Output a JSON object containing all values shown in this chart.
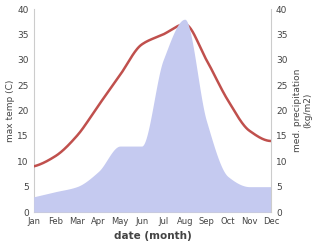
{
  "months": [
    "Jan",
    "Feb",
    "Mar",
    "Apr",
    "May",
    "Jun",
    "Jul",
    "Aug",
    "Sep",
    "Oct",
    "Nov",
    "Dec"
  ],
  "temp": [
    9,
    11,
    15,
    21,
    27,
    33,
    35,
    37,
    30,
    22,
    16,
    14
  ],
  "precip": [
    3,
    4,
    5,
    8,
    13,
    13,
    30,
    38,
    18,
    7,
    5,
    5
  ],
  "temp_color": "#c0504d",
  "precip_fill_color": "#c5caf0",
  "ylabel_left": "max temp (C)",
  "ylabel_right": "med. precipitation\n(kg/m2)",
  "xlabel": "date (month)",
  "ylim": [
    0,
    40
  ],
  "bg_color": "#ffffff"
}
